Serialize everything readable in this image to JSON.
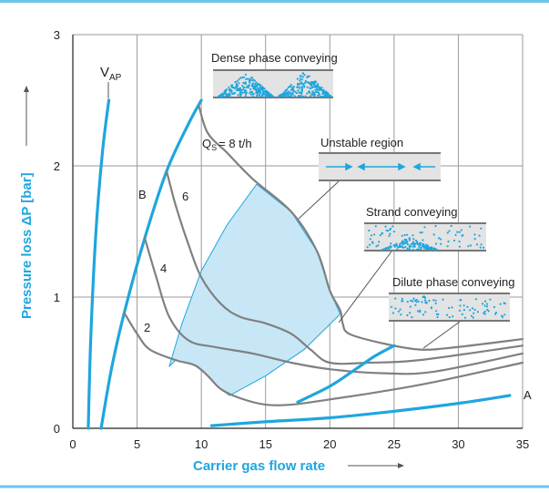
{
  "chart_data": {
    "type": "line",
    "x_label": "Carrier gas flow rate",
    "y_label": "Pressure loss ΔP [bar]",
    "xlim": [
      0,
      35
    ],
    "ylim": [
      0,
      3
    ],
    "xticks": [
      0,
      5,
      10,
      15,
      20,
      25,
      30,
      35
    ],
    "yticks": [
      0,
      1,
      2,
      3
    ],
    "grid": true,
    "series": [
      {
        "color": "#1ea6de",
        "x": [
          1.2,
          1.4,
          1.8,
          2.3,
          2.8
        ],
        "values": [
          0,
          0.7,
          1.5,
          2.1,
          2.5
        ]
      },
      {
        "color": "#1ea6de",
        "x": [
          2.2,
          3.0,
          4.0,
          5.6,
          7.3,
          9.0,
          10.0
        ],
        "values": [
          0,
          0.45,
          0.88,
          1.45,
          1.96,
          2.32,
          2.5
        ]
      },
      {
        "color": "#808080",
        "x": [
          9.8,
          10.5,
          12,
          14,
          17,
          19,
          20,
          20.8,
          21,
          21.5,
          24,
          27,
          30,
          35
        ],
        "values": [
          2.46,
          2.25,
          2.1,
          1.9,
          1.65,
          1.35,
          1.05,
          0.9,
          0.8,
          0.72,
          0.65,
          0.6,
          0.62,
          0.68
        ]
      },
      {
        "color": "#808080",
        "x": [
          7.3,
          8,
          9,
          10,
          11.5,
          13,
          15,
          17,
          18.5,
          20,
          23,
          27,
          35
        ],
        "values": [
          1.96,
          1.7,
          1.4,
          1.15,
          0.95,
          0.85,
          0.8,
          0.72,
          0.6,
          0.5,
          0.5,
          0.52,
          0.63
        ]
      },
      {
        "color": "#808080",
        "x": [
          5.6,
          6.5,
          7.5,
          9,
          11,
          14,
          17,
          20,
          24,
          28,
          35
        ],
        "values": [
          1.45,
          1.15,
          0.85,
          0.67,
          0.62,
          0.57,
          0.5,
          0.45,
          0.42,
          0.43,
          0.57
        ]
      },
      {
        "color": "#808080",
        "x": [
          4.0,
          5,
          6,
          8,
          9.5,
          10.5,
          11.5,
          13,
          15,
          17,
          20,
          24,
          28,
          35
        ],
        "values": [
          0.88,
          0.72,
          0.6,
          0.52,
          0.48,
          0.4,
          0.3,
          0.23,
          0.18,
          0.18,
          0.22,
          0.28,
          0.35,
          0.5
        ]
      },
      {
        "color": "#1ea6de",
        "x": [
          10.8,
          15,
          20,
          25,
          30,
          34
        ],
        "values": [
          0.02,
          0.05,
          0.08,
          0.13,
          0.19,
          0.25
        ]
      },
      {
        "color": "#1ea6de",
        "x": [
          17.5,
          20,
          22,
          23.5,
          25
        ],
        "values": [
          0.2,
          0.32,
          0.45,
          0.55,
          0.63
        ]
      }
    ],
    "region": {
      "color": "#1ea6de",
      "fill": "#c7e7f6",
      "x": [
        7.5,
        8.5,
        10,
        12,
        14.3,
        17,
        19,
        20,
        20.8,
        18,
        15,
        12.2,
        11.5,
        10.5,
        9.5,
        8
      ],
      "values": [
        0.47,
        0.8,
        1.2,
        1.55,
        1.86,
        1.65,
        1.35,
        1.05,
        0.87,
        0.6,
        0.4,
        0.25,
        0.3,
        0.4,
        0.48,
        0.52
      ]
    },
    "annotations": {
      "v_ap": [
        "V",
        "AP"
      ],
      "q_s": [
        "Q",
        "S",
        "= 8 t/h"
      ],
      "curve_6": "6",
      "curve_4": "4",
      "curve_2": "2",
      "curve_b": "B",
      "curve_a": "A",
      "dense": "Dense phase conveying",
      "unstable": "Unstable region",
      "strand": "Strand conveying",
      "dilute": "Dilute phase conveying"
    }
  }
}
